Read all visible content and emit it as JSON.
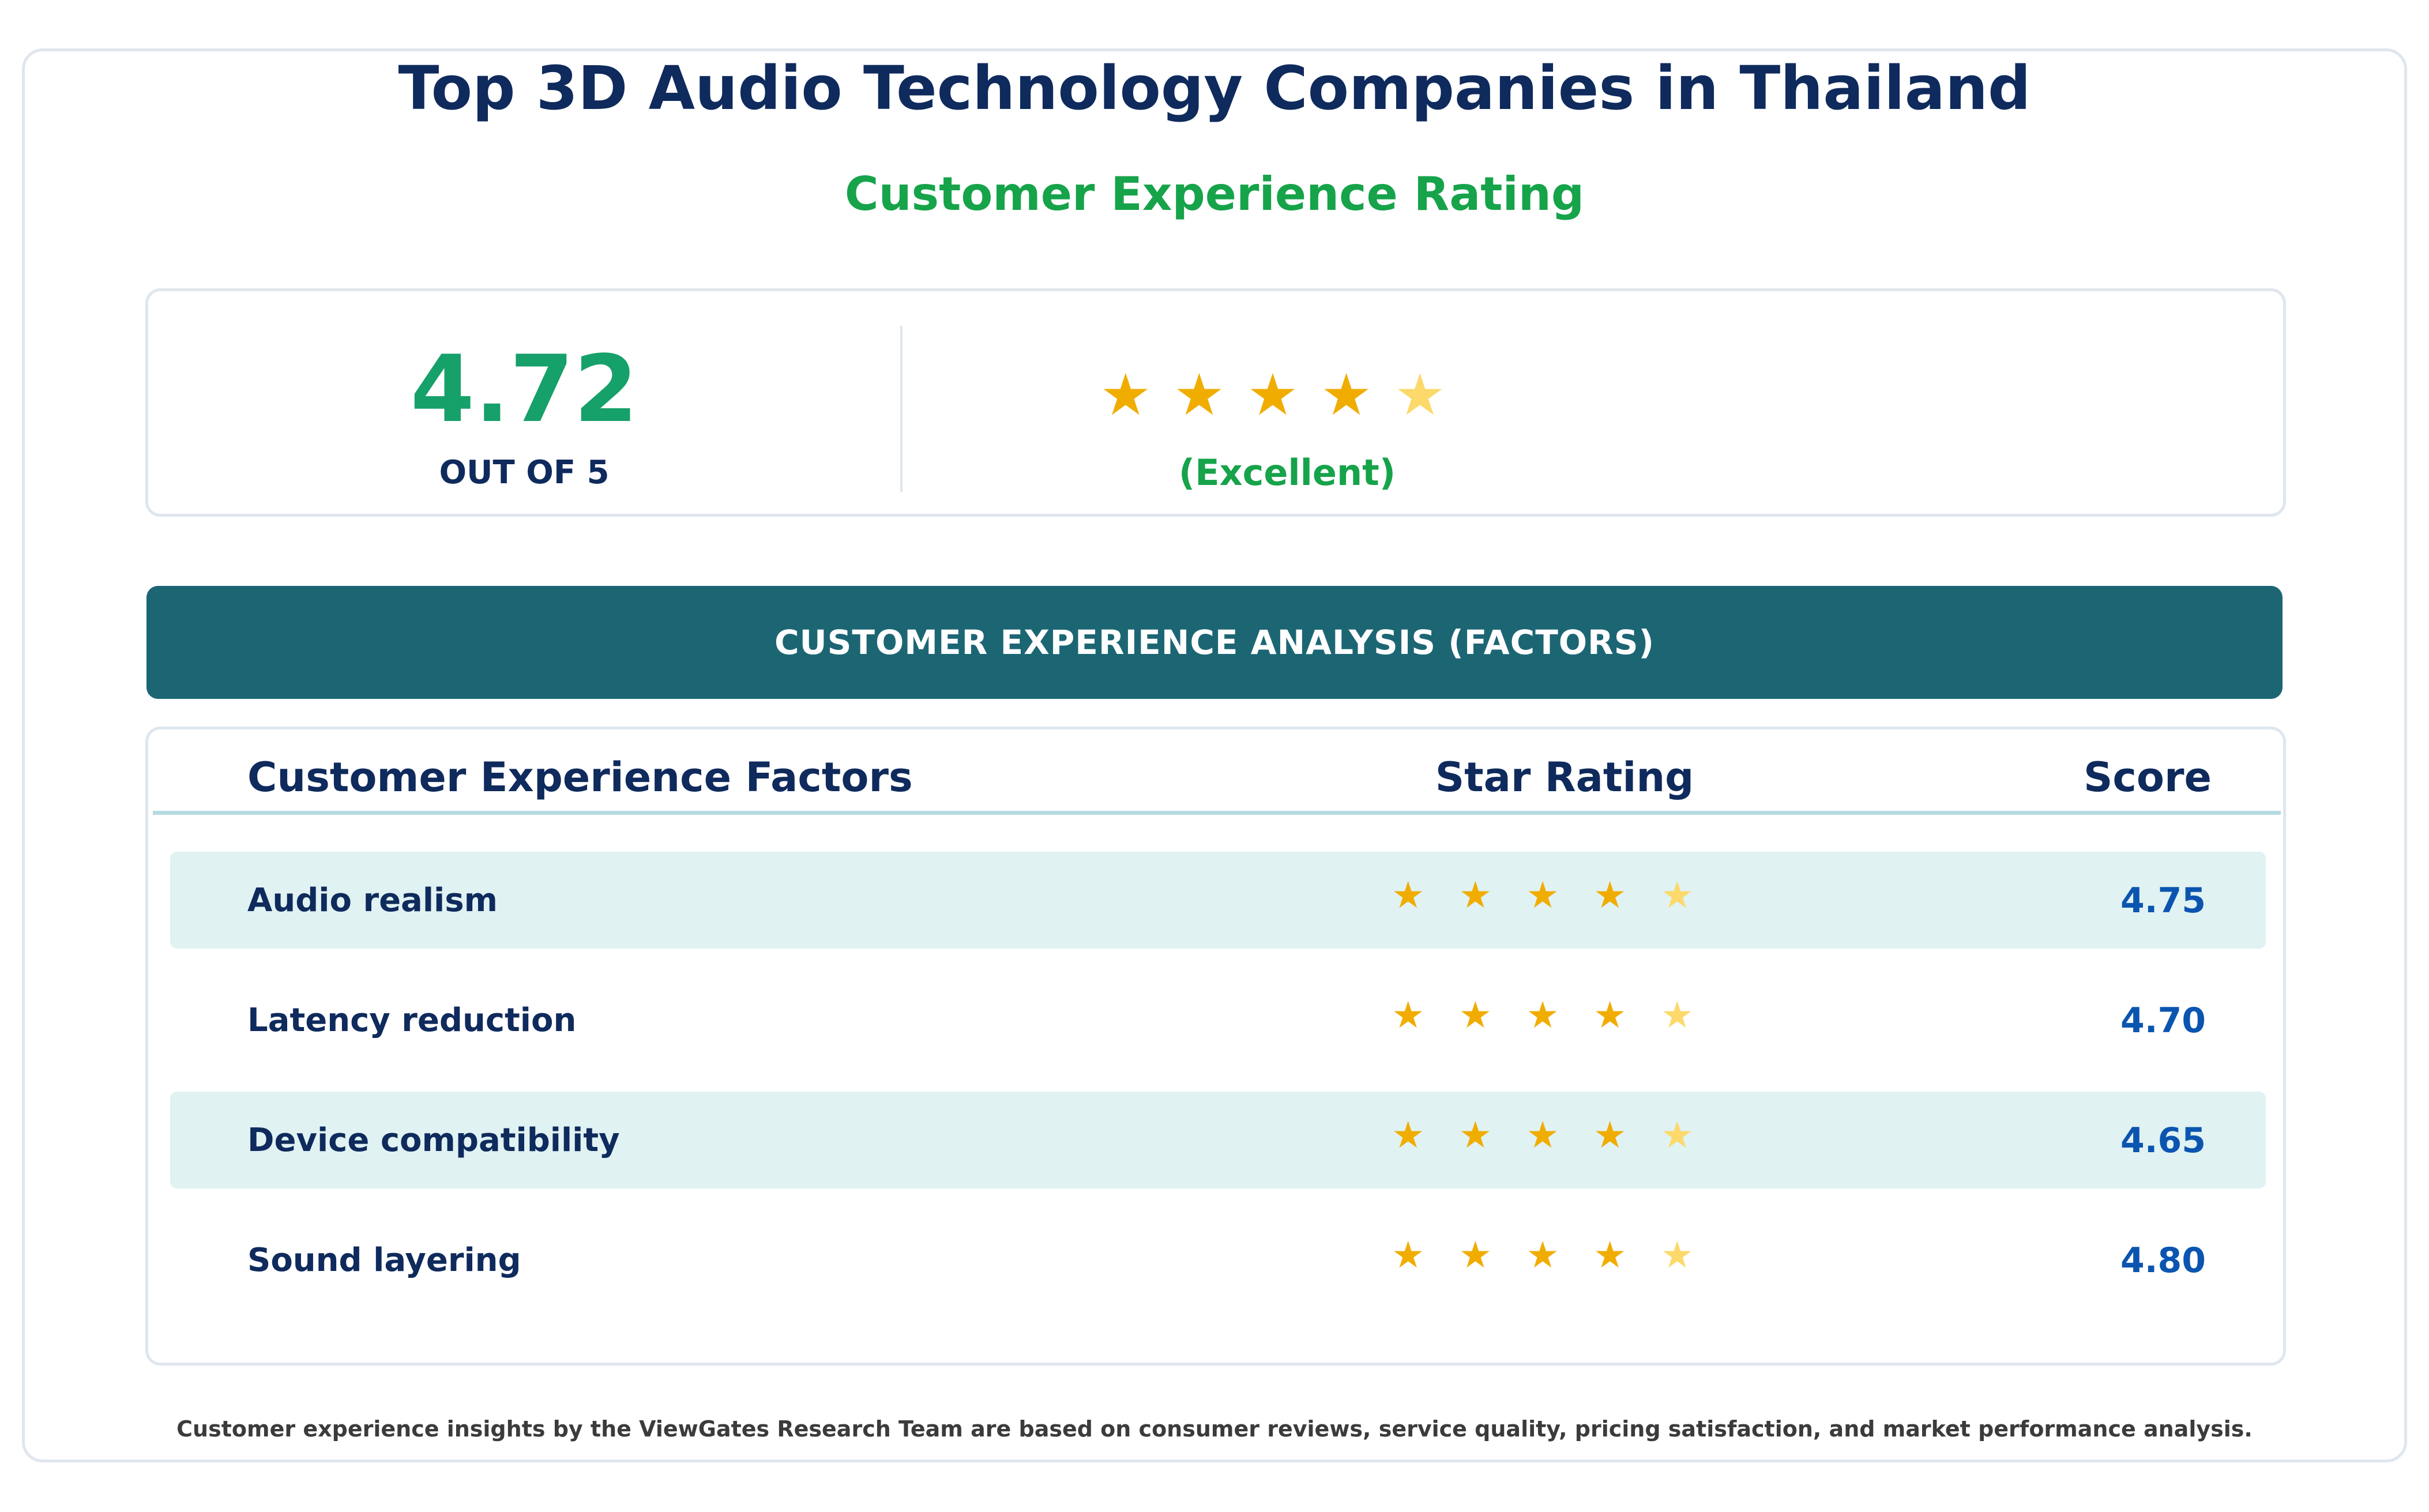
{
  "header": {
    "title": "Top 3D Audio Technology Companies in Thailand",
    "subtitle": "Customer Experience Rating"
  },
  "summary": {
    "score": "4.72",
    "out_of": "OUT OF 5",
    "stars_value": 4.72,
    "star_glyph": "★",
    "rating_label": "(Excellent)"
  },
  "banner": {
    "label": "CUSTOMER EXPERIENCE ANALYSIS (FACTORS)"
  },
  "table": {
    "columns": {
      "factor": "Customer Experience Factors",
      "stars": "Star Rating",
      "score": "Score"
    },
    "rows": [
      {
        "label": "Audio realism",
        "score": "4.75",
        "stars_value": 4.75
      },
      {
        "label": "Latency reduction",
        "score": "4.70",
        "stars_value": 4.7
      },
      {
        "label": "Device compatibility",
        "score": "4.65",
        "stars_value": 4.65
      },
      {
        "label": "Sound layering",
        "score": "4.80",
        "stars_value": 4.8
      }
    ]
  },
  "footer": {
    "text": "Customer experience insights by the ViewGates Research Team are based on consumer reviews, service quality, pricing satisfaction, and market performance analysis."
  },
  "colors": {
    "title": "#0f2a5c",
    "accent_green": "#16a34a",
    "banner": "#1c6674",
    "star_full": "#f0ad00",
    "star_partial": "#fcd96a",
    "score_blue": "#0b55b0",
    "row_shade": "#e0f2f2"
  }
}
